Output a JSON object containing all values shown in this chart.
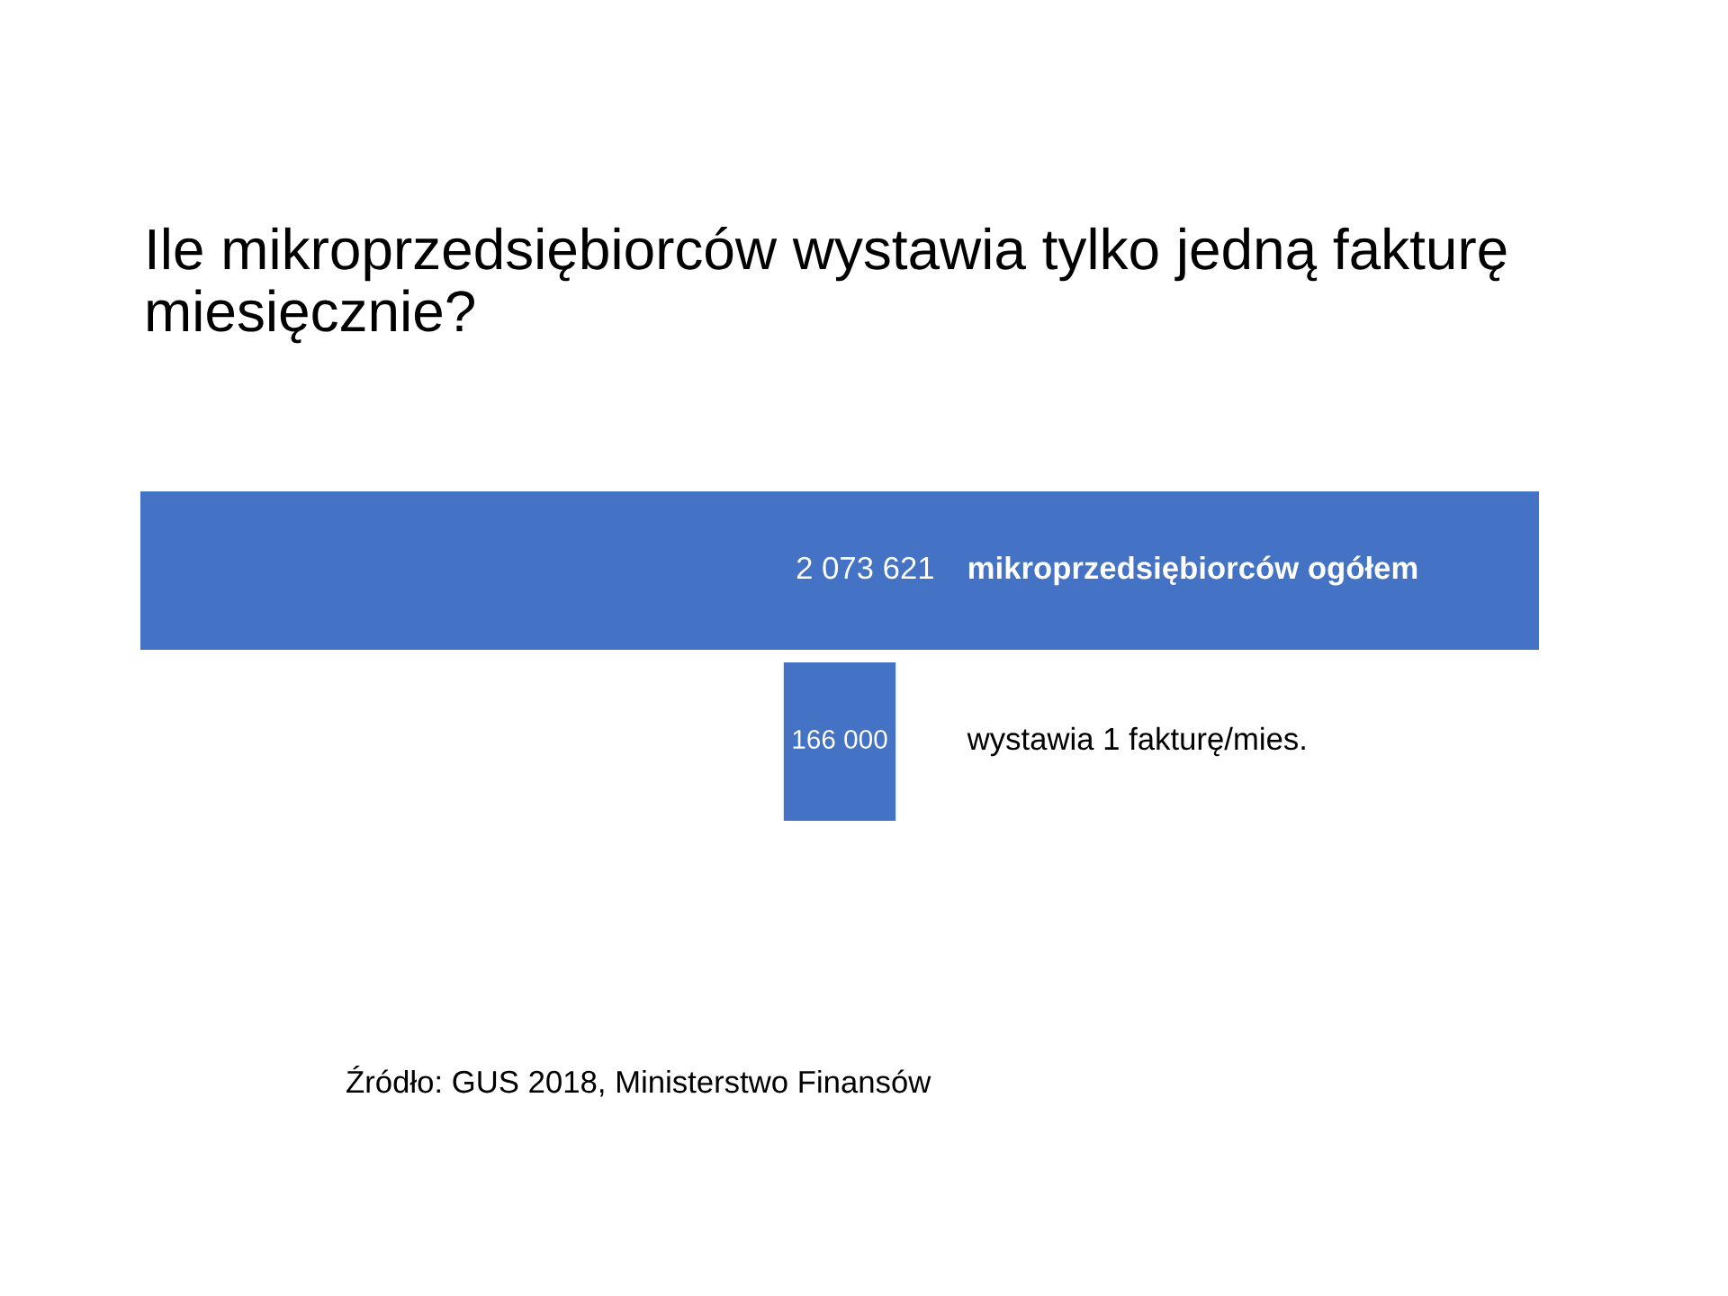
{
  "chart_data": {
    "type": "other",
    "title": "Ile mikroprzedsiębiorców wystawia tylko jedną fakturę miesięcznie?",
    "categories": [
      "mikroprzedsiębiorców ogółem",
      "wystawia 1 fakturę/mies."
    ],
    "values": [
      2073621,
      166000
    ],
    "value_labels": [
      "2 073 621",
      "166 000"
    ],
    "color": "#4472c4",
    "annotations": [
      "Źródło: GUS 2018, Ministerstwo Finansów"
    ]
  }
}
